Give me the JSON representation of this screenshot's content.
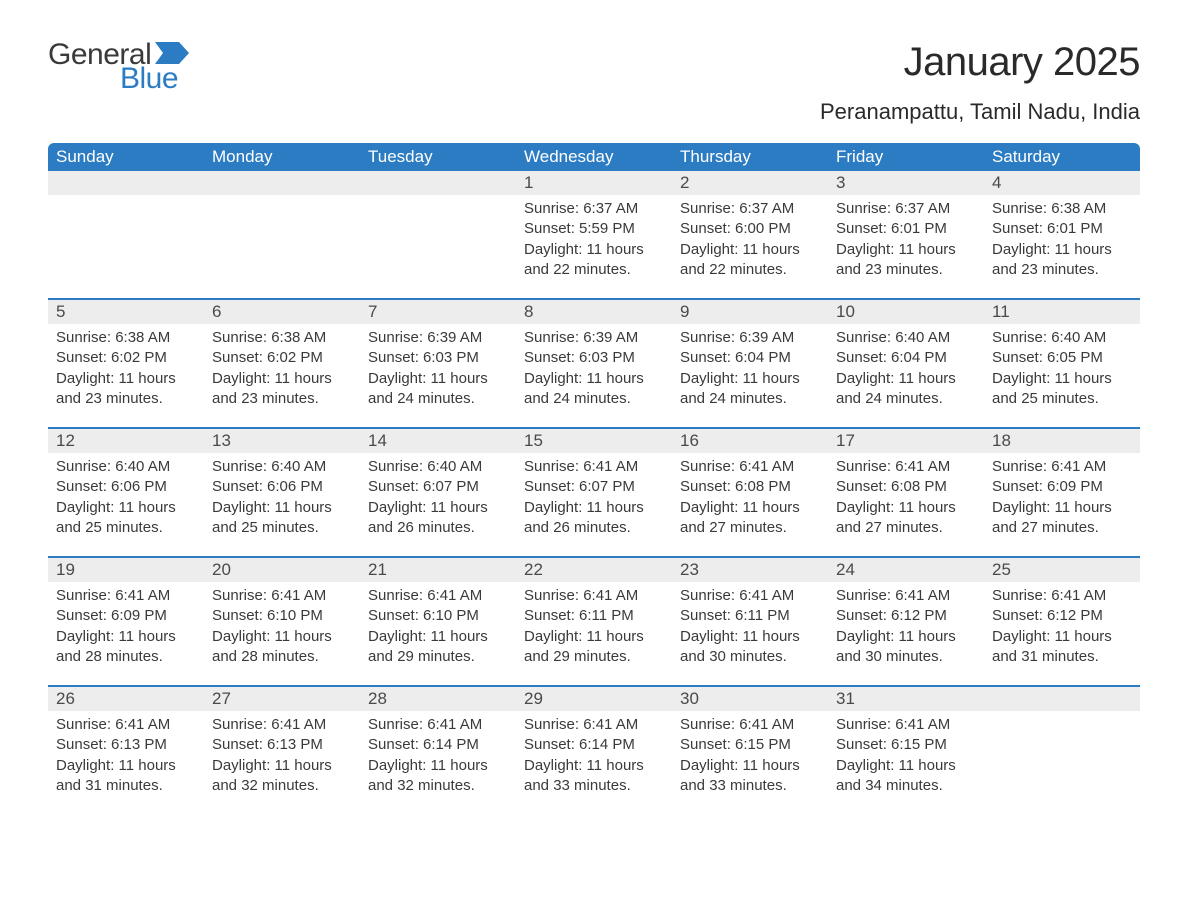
{
  "logo": {
    "general": "General",
    "blue": "Blue",
    "flag_color": "#2c7cc4"
  },
  "title": "January 2025",
  "location": "Peranampattu, Tamil Nadu, India",
  "colors": {
    "header_bg": "#2c7cc4",
    "header_text": "#ffffff",
    "daynum_bg": "#ededed",
    "daynum_border": "#2c7cc4",
    "body_text": "#3a3a3a",
    "page_bg": "#ffffff"
  },
  "typography": {
    "title_fontsize": 40,
    "location_fontsize": 22,
    "header_fontsize": 17,
    "daynum_fontsize": 17,
    "cell_fontsize": 15
  },
  "day_headers": [
    "Sunday",
    "Monday",
    "Tuesday",
    "Wednesday",
    "Thursday",
    "Friday",
    "Saturday"
  ],
  "weeks": [
    [
      null,
      null,
      null,
      {
        "n": "1",
        "sunrise": "Sunrise: 6:37 AM",
        "sunset": "Sunset: 5:59 PM",
        "daylight": "Daylight: 11 hours and 22 minutes."
      },
      {
        "n": "2",
        "sunrise": "Sunrise: 6:37 AM",
        "sunset": "Sunset: 6:00 PM",
        "daylight": "Daylight: 11 hours and 22 minutes."
      },
      {
        "n": "3",
        "sunrise": "Sunrise: 6:37 AM",
        "sunset": "Sunset: 6:01 PM",
        "daylight": "Daylight: 11 hours and 23 minutes."
      },
      {
        "n": "4",
        "sunrise": "Sunrise: 6:38 AM",
        "sunset": "Sunset: 6:01 PM",
        "daylight": "Daylight: 11 hours and 23 minutes."
      }
    ],
    [
      {
        "n": "5",
        "sunrise": "Sunrise: 6:38 AM",
        "sunset": "Sunset: 6:02 PM",
        "daylight": "Daylight: 11 hours and 23 minutes."
      },
      {
        "n": "6",
        "sunrise": "Sunrise: 6:38 AM",
        "sunset": "Sunset: 6:02 PM",
        "daylight": "Daylight: 11 hours and 23 minutes."
      },
      {
        "n": "7",
        "sunrise": "Sunrise: 6:39 AM",
        "sunset": "Sunset: 6:03 PM",
        "daylight": "Daylight: 11 hours and 24 minutes."
      },
      {
        "n": "8",
        "sunrise": "Sunrise: 6:39 AM",
        "sunset": "Sunset: 6:03 PM",
        "daylight": "Daylight: 11 hours and 24 minutes."
      },
      {
        "n": "9",
        "sunrise": "Sunrise: 6:39 AM",
        "sunset": "Sunset: 6:04 PM",
        "daylight": "Daylight: 11 hours and 24 minutes."
      },
      {
        "n": "10",
        "sunrise": "Sunrise: 6:40 AM",
        "sunset": "Sunset: 6:04 PM",
        "daylight": "Daylight: 11 hours and 24 minutes."
      },
      {
        "n": "11",
        "sunrise": "Sunrise: 6:40 AM",
        "sunset": "Sunset: 6:05 PM",
        "daylight": "Daylight: 11 hours and 25 minutes."
      }
    ],
    [
      {
        "n": "12",
        "sunrise": "Sunrise: 6:40 AM",
        "sunset": "Sunset: 6:06 PM",
        "daylight": "Daylight: 11 hours and 25 minutes."
      },
      {
        "n": "13",
        "sunrise": "Sunrise: 6:40 AM",
        "sunset": "Sunset: 6:06 PM",
        "daylight": "Daylight: 11 hours and 25 minutes."
      },
      {
        "n": "14",
        "sunrise": "Sunrise: 6:40 AM",
        "sunset": "Sunset: 6:07 PM",
        "daylight": "Daylight: 11 hours and 26 minutes."
      },
      {
        "n": "15",
        "sunrise": "Sunrise: 6:41 AM",
        "sunset": "Sunset: 6:07 PM",
        "daylight": "Daylight: 11 hours and 26 minutes."
      },
      {
        "n": "16",
        "sunrise": "Sunrise: 6:41 AM",
        "sunset": "Sunset: 6:08 PM",
        "daylight": "Daylight: 11 hours and 27 minutes."
      },
      {
        "n": "17",
        "sunrise": "Sunrise: 6:41 AM",
        "sunset": "Sunset: 6:08 PM",
        "daylight": "Daylight: 11 hours and 27 minutes."
      },
      {
        "n": "18",
        "sunrise": "Sunrise: 6:41 AM",
        "sunset": "Sunset: 6:09 PM",
        "daylight": "Daylight: 11 hours and 27 minutes."
      }
    ],
    [
      {
        "n": "19",
        "sunrise": "Sunrise: 6:41 AM",
        "sunset": "Sunset: 6:09 PM",
        "daylight": "Daylight: 11 hours and 28 minutes."
      },
      {
        "n": "20",
        "sunrise": "Sunrise: 6:41 AM",
        "sunset": "Sunset: 6:10 PM",
        "daylight": "Daylight: 11 hours and 28 minutes."
      },
      {
        "n": "21",
        "sunrise": "Sunrise: 6:41 AM",
        "sunset": "Sunset: 6:10 PM",
        "daylight": "Daylight: 11 hours and 29 minutes."
      },
      {
        "n": "22",
        "sunrise": "Sunrise: 6:41 AM",
        "sunset": "Sunset: 6:11 PM",
        "daylight": "Daylight: 11 hours and 29 minutes."
      },
      {
        "n": "23",
        "sunrise": "Sunrise: 6:41 AM",
        "sunset": "Sunset: 6:11 PM",
        "daylight": "Daylight: 11 hours and 30 minutes."
      },
      {
        "n": "24",
        "sunrise": "Sunrise: 6:41 AM",
        "sunset": "Sunset: 6:12 PM",
        "daylight": "Daylight: 11 hours and 30 minutes."
      },
      {
        "n": "25",
        "sunrise": "Sunrise: 6:41 AM",
        "sunset": "Sunset: 6:12 PM",
        "daylight": "Daylight: 11 hours and 31 minutes."
      }
    ],
    [
      {
        "n": "26",
        "sunrise": "Sunrise: 6:41 AM",
        "sunset": "Sunset: 6:13 PM",
        "daylight": "Daylight: 11 hours and 31 minutes."
      },
      {
        "n": "27",
        "sunrise": "Sunrise: 6:41 AM",
        "sunset": "Sunset: 6:13 PM",
        "daylight": "Daylight: 11 hours and 32 minutes."
      },
      {
        "n": "28",
        "sunrise": "Sunrise: 6:41 AM",
        "sunset": "Sunset: 6:14 PM",
        "daylight": "Daylight: 11 hours and 32 minutes."
      },
      {
        "n": "29",
        "sunrise": "Sunrise: 6:41 AM",
        "sunset": "Sunset: 6:14 PM",
        "daylight": "Daylight: 11 hours and 33 minutes."
      },
      {
        "n": "30",
        "sunrise": "Sunrise: 6:41 AM",
        "sunset": "Sunset: 6:15 PM",
        "daylight": "Daylight: 11 hours and 33 minutes."
      },
      {
        "n": "31",
        "sunrise": "Sunrise: 6:41 AM",
        "sunset": "Sunset: 6:15 PM",
        "daylight": "Daylight: 11 hours and 34 minutes."
      },
      null
    ]
  ]
}
